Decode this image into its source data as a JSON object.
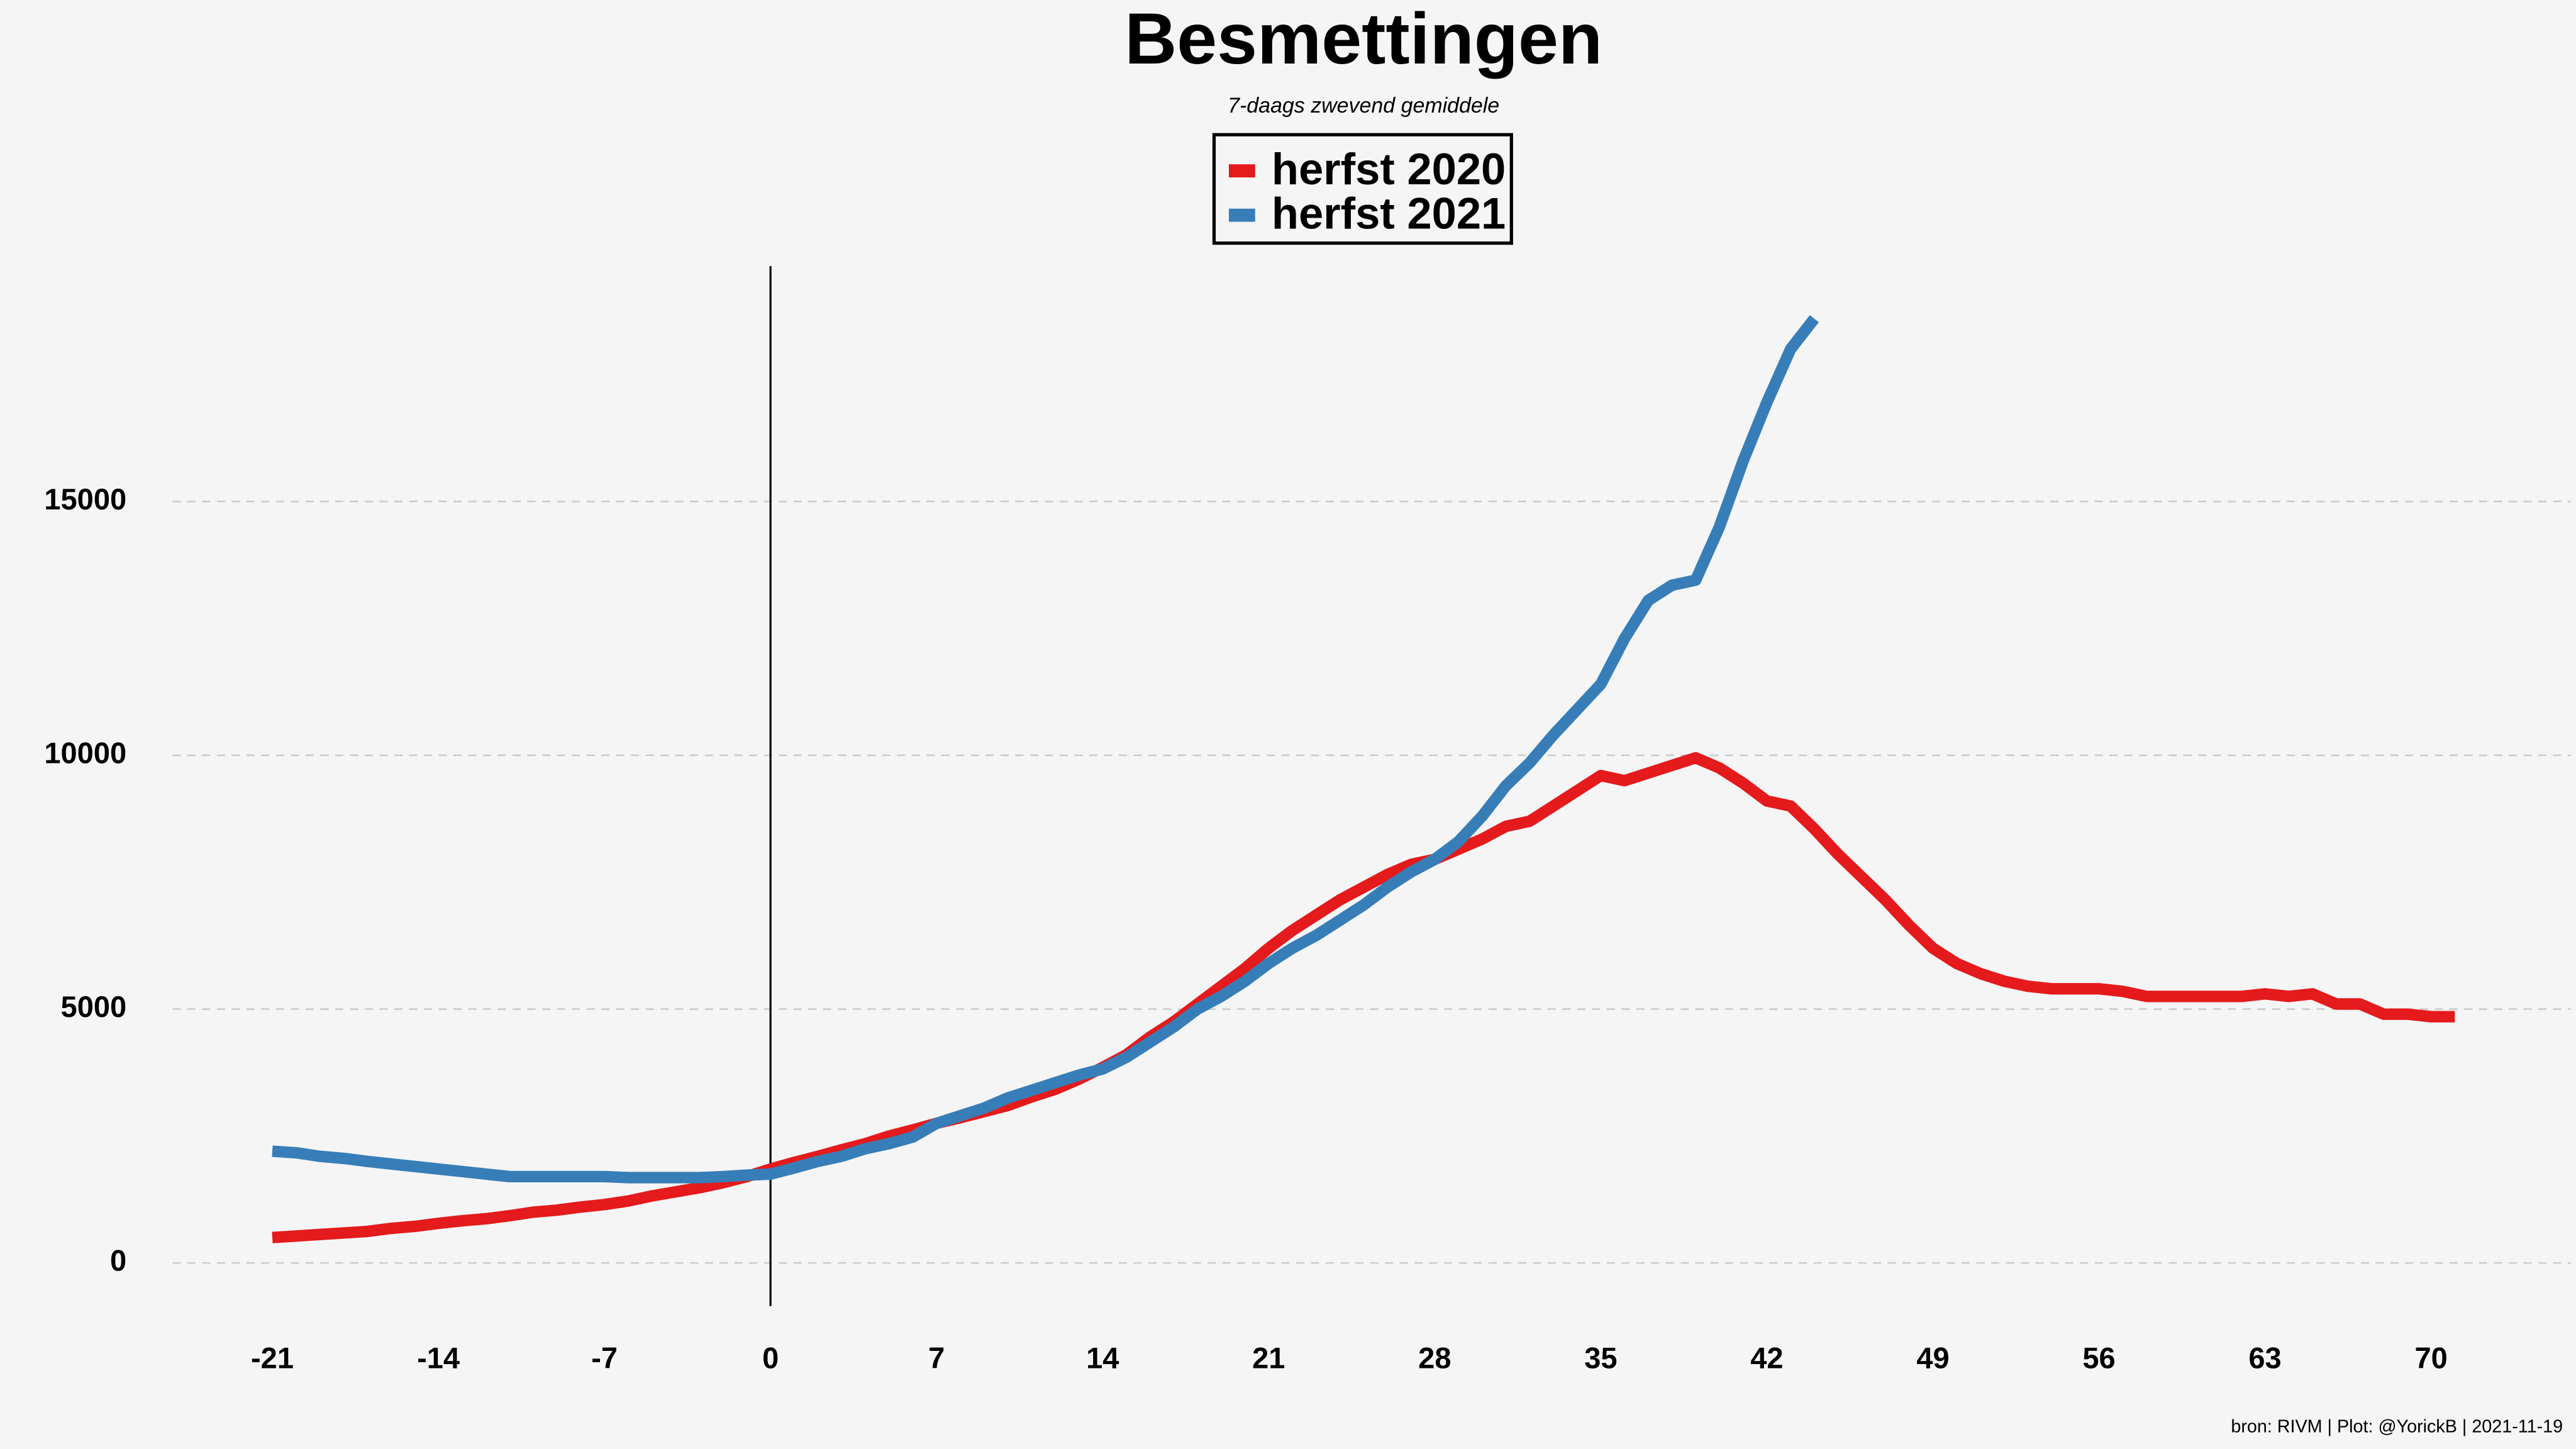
{
  "chart_data": {
    "type": "line",
    "title": "Besmettingen",
    "subtitle": "7-daags zwevend gemiddele",
    "caption": "bron: RIVM  | Plot: @YorickB |  2021-11-19",
    "x": [
      -21,
      -20,
      -19,
      -18,
      -17,
      -16,
      -15,
      -14,
      -13,
      -12,
      -11,
      -10,
      -9,
      -8,
      -7,
      -6,
      -5,
      -4,
      -3,
      -2,
      -1,
      0,
      1,
      2,
      3,
      4,
      5,
      6,
      7,
      8,
      9,
      10,
      11,
      12,
      13,
      14,
      15,
      16,
      17,
      18,
      19,
      20,
      21,
      22,
      23,
      24,
      25,
      26,
      27,
      28,
      29,
      30,
      31,
      32,
      33,
      34,
      35,
      36,
      37,
      38,
      39,
      40,
      41,
      42,
      43,
      44,
      45,
      46,
      47,
      48,
      49,
      50,
      51,
      52,
      53,
      54,
      55,
      56,
      57,
      58,
      59,
      60,
      61,
      62,
      63,
      64,
      65,
      66,
      67,
      68,
      69,
      70,
      71
    ],
    "series": [
      {
        "name": "herfst 2020",
        "color": "#e41a1c",
        "values": [
          500,
          530,
          560,
          590,
          620,
          680,
          720,
          780,
          830,
          870,
          930,
          1000,
          1040,
          1100,
          1150,
          1220,
          1320,
          1400,
          1480,
          1580,
          1700,
          1850,
          1980,
          2100,
          2230,
          2350,
          2500,
          2620,
          2750,
          2860,
          2980,
          3100,
          3270,
          3420,
          3620,
          3850,
          4100,
          4450,
          4750,
          5100,
          5450,
          5800,
          6200,
          6550,
          6850,
          7150,
          7400,
          7650,
          7850,
          7950,
          8150,
          8350,
          8600,
          8700,
          9000,
          9300,
          9600,
          9500,
          9650,
          9800,
          9950,
          9750,
          9450,
          9100,
          9000,
          8550,
          8050,
          7600,
          7150,
          6650,
          6200,
          5900,
          5700,
          5550,
          5450,
          5400,
          5400,
          5400,
          5350,
          5250,
          5250,
          5250,
          5250,
          5250,
          5300,
          5250,
          5300,
          5100,
          5100,
          4900,
          4900,
          4850,
          4850
        ]
      },
      {
        "name": "herfst 2021",
        "color": "#377eb8",
        "values": [
          2200,
          2170,
          2100,
          2060,
          2000,
          1950,
          1900,
          1850,
          1800,
          1750,
          1700,
          1700,
          1700,
          1700,
          1700,
          1680,
          1680,
          1680,
          1680,
          1700,
          1730,
          1750,
          1870,
          2000,
          2100,
          2250,
          2350,
          2480,
          2750,
          2900,
          3050,
          3250,
          3400,
          3550,
          3700,
          3820,
          4050,
          4350,
          4650,
          5000,
          5250,
          5550,
          5900,
          6200,
          6450,
          6750,
          7050,
          7400,
          7700,
          7950,
          8300,
          8800,
          9400,
          9850,
          10400,
          10900,
          11400,
          12300,
          13050,
          13350,
          13450,
          14500,
          15800,
          16950,
          18000,
          18600,
          null,
          null,
          null,
          null,
          null,
          null,
          null,
          null,
          null,
          null,
          null,
          null,
          null,
          null,
          null,
          null,
          null,
          null,
          null,
          null,
          null,
          null,
          null,
          null,
          null,
          null,
          null
        ]
      }
    ],
    "xlim": [
      -25,
      75
    ],
    "ylim": [
      -850,
      19700
    ],
    "xticks": [
      -21,
      -14,
      -7,
      0,
      7,
      14,
      21,
      28,
      35,
      42,
      49,
      56,
      63,
      70
    ],
    "yticks": [
      0,
      5000,
      10000,
      15000
    ],
    "grid": true,
    "vline": 0
  }
}
